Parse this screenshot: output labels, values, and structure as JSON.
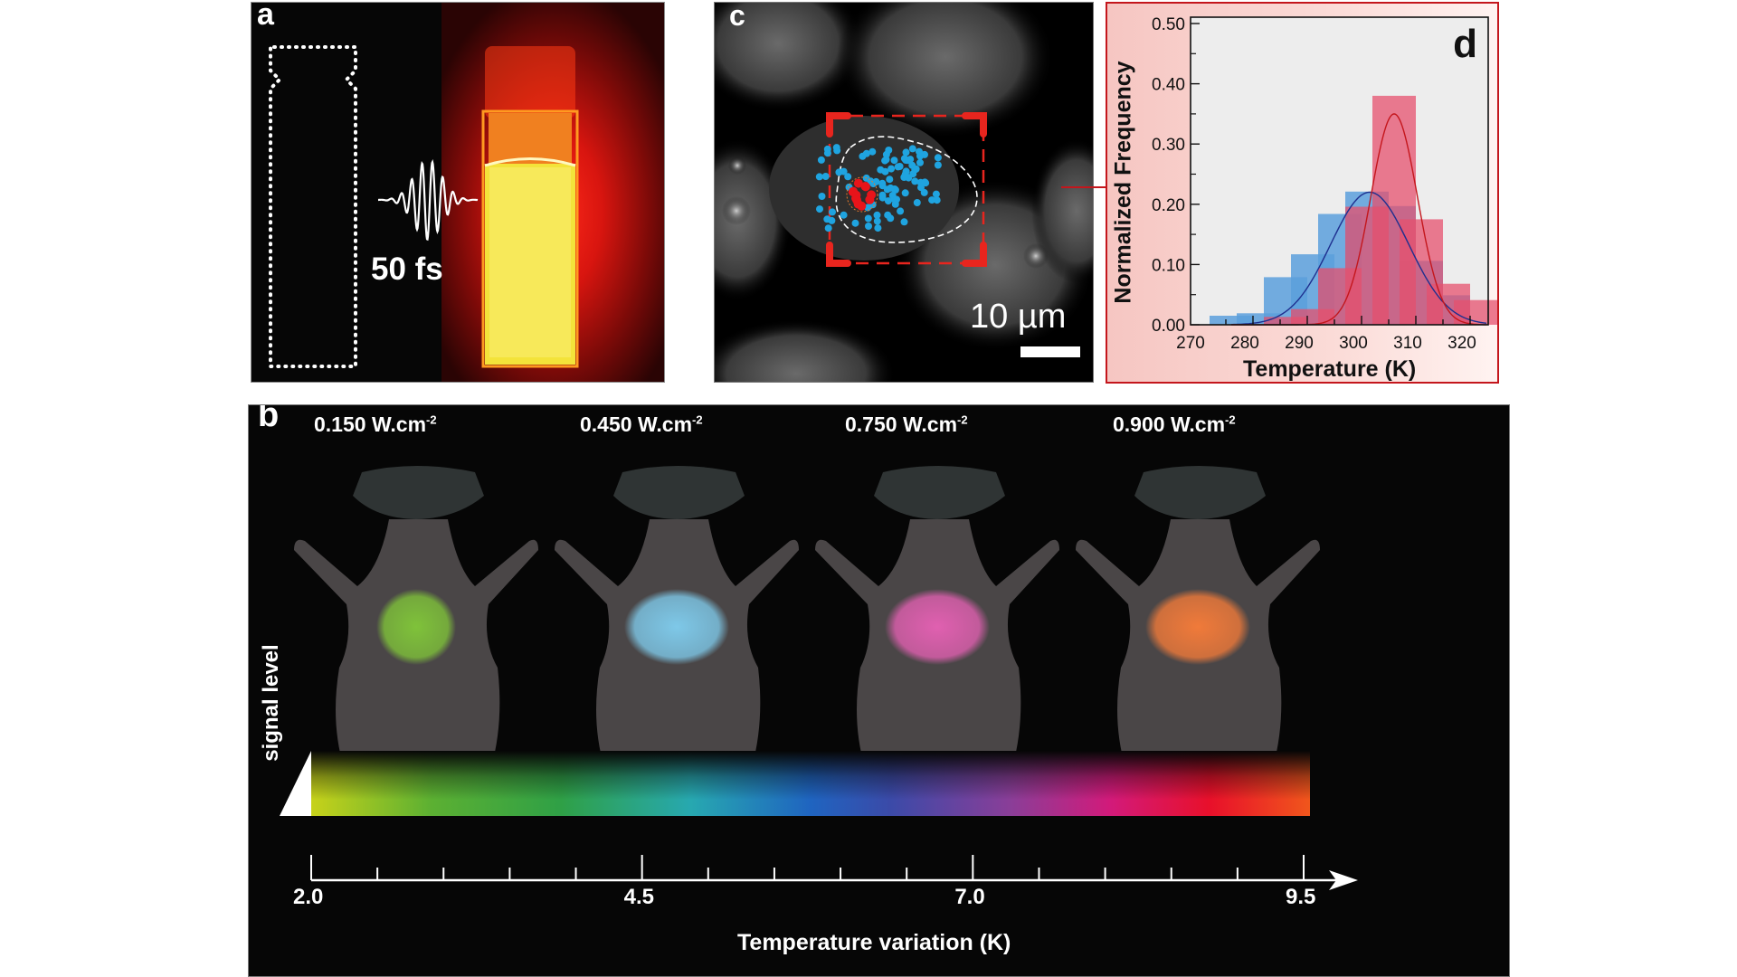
{
  "figure": {
    "panels": {
      "a": {
        "label": "a",
        "pulse_label": "50 fs",
        "colors": {
          "dark_vial_outline": "#ffffff",
          "glow": "#ff2a1a",
          "vial_fill": "#f4e435"
        }
      },
      "c": {
        "label": "c",
        "scale_bar_label": "10 µm",
        "colors": {
          "roi_box": "#e8251e",
          "dots_blue": "#1fa4e0",
          "dots_red": "#e8141a"
        }
      },
      "d": {
        "label": "d",
        "frame_color": "#c4161c"
      },
      "b": {
        "label": "b",
        "power_densities": [
          {
            "value": "0.150 W.cm",
            "exp": "-2",
            "spot_color": "#7fc23a"
          },
          {
            "value": "0.450 W.cm",
            "exp": "-2",
            "spot_color": "#7ec8e8"
          },
          {
            "value": "0.750 W.cm",
            "exp": "-2",
            "spot_color": "#e060b0"
          },
          {
            "value": "0.900 W.cm",
            "exp": "-2",
            "spot_color": "#f07a3a"
          }
        ],
        "signal_label": "signal level",
        "axis": {
          "title": "Temperature variation (K)",
          "range": [
            2.0,
            9.5
          ],
          "major_ticks": [
            "2.0",
            "4.5",
            "7.0",
            "9.5"
          ],
          "minor_step": 0.5
        }
      }
    }
  },
  "chart_data": {
    "type": "bar",
    "title": "",
    "panel": "d",
    "xlabel": "Temperature (K)",
    "ylabel": "Normalized Frequency",
    "xlim": [
      270,
      324
    ],
    "ylim": [
      0,
      0.5
    ],
    "xticks": [
      "270",
      "280",
      "290",
      "300",
      "310",
      "320"
    ],
    "yticks": [
      "0.00",
      "0.10",
      "0.20",
      "0.30",
      "0.40",
      "0.50"
    ],
    "bin_centers": [
      276,
      281,
      286,
      291,
      296,
      301,
      306,
      311,
      316,
      321
    ],
    "series": [
      {
        "name": "blue",
        "color": "#5a9fdc",
        "values": [
          0.015,
          0.019,
          0.079,
          0.117,
          0.184,
          0.221,
          0.197,
          0.106,
          0.049,
          0.0
        ],
        "fit": {
          "type": "gaussian",
          "mean": 301.5,
          "sigma": 7.2,
          "peak": 0.22,
          "color": "#1e2f8f"
        }
      },
      {
        "name": "red",
        "color": "#e6506e",
        "values": [
          0.0,
          0.0,
          0.013,
          0.026,
          0.094,
          0.196,
          0.38,
          0.175,
          0.068,
          0.041
        ],
        "fit": {
          "type": "gaussian",
          "mean": 306.0,
          "sigma": 4.3,
          "peak": 0.35,
          "color": "#c4161c"
        }
      }
    ],
    "grid": false,
    "legend": "none"
  }
}
